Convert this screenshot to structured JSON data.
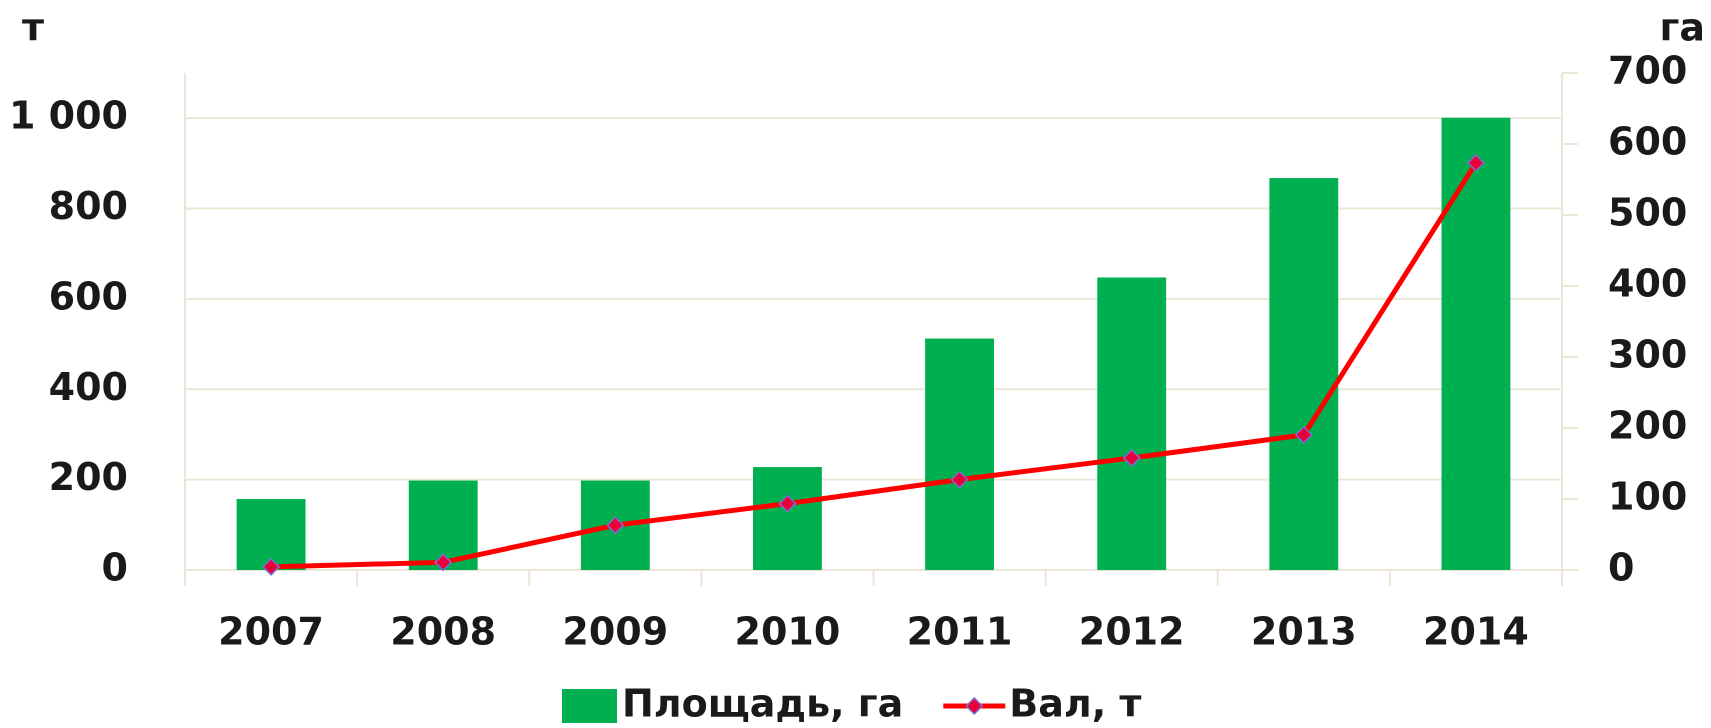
{
  "chart_data": {
    "type": "bar_line",
    "y_label": "т",
    "y2_label": "га",
    "categories": [
      "2007",
      "2008",
      "2009",
      "2010",
      "2011",
      "2012",
      "2013",
      "2014"
    ],
    "series": [
      {
        "name": "Площадь, га",
        "type": "bar",
        "axis": "y2",
        "color": "#00b050",
        "values": [
          100,
          126,
          126,
          145,
          326,
          412,
          552,
          637
        ]
      },
      {
        "name": "Вал, т",
        "type": "line",
        "axis": "y",
        "color": "#ff0000",
        "marker_color": "#e8003a",
        "values": [
          7,
          17,
          99,
          147,
          200,
          248,
          299,
          901
        ]
      }
    ],
    "ylim": [
      0,
      1100
    ],
    "yticks": [
      0,
      200,
      400,
      600,
      800,
      {
        "value": 1000,
        "label": "1 000"
      }
    ],
    "y2lim": [
      0,
      700
    ],
    "y2ticks": [
      0,
      100,
      200,
      300,
      400,
      500,
      600,
      700
    ],
    "grid": true,
    "legend": "bottom"
  }
}
